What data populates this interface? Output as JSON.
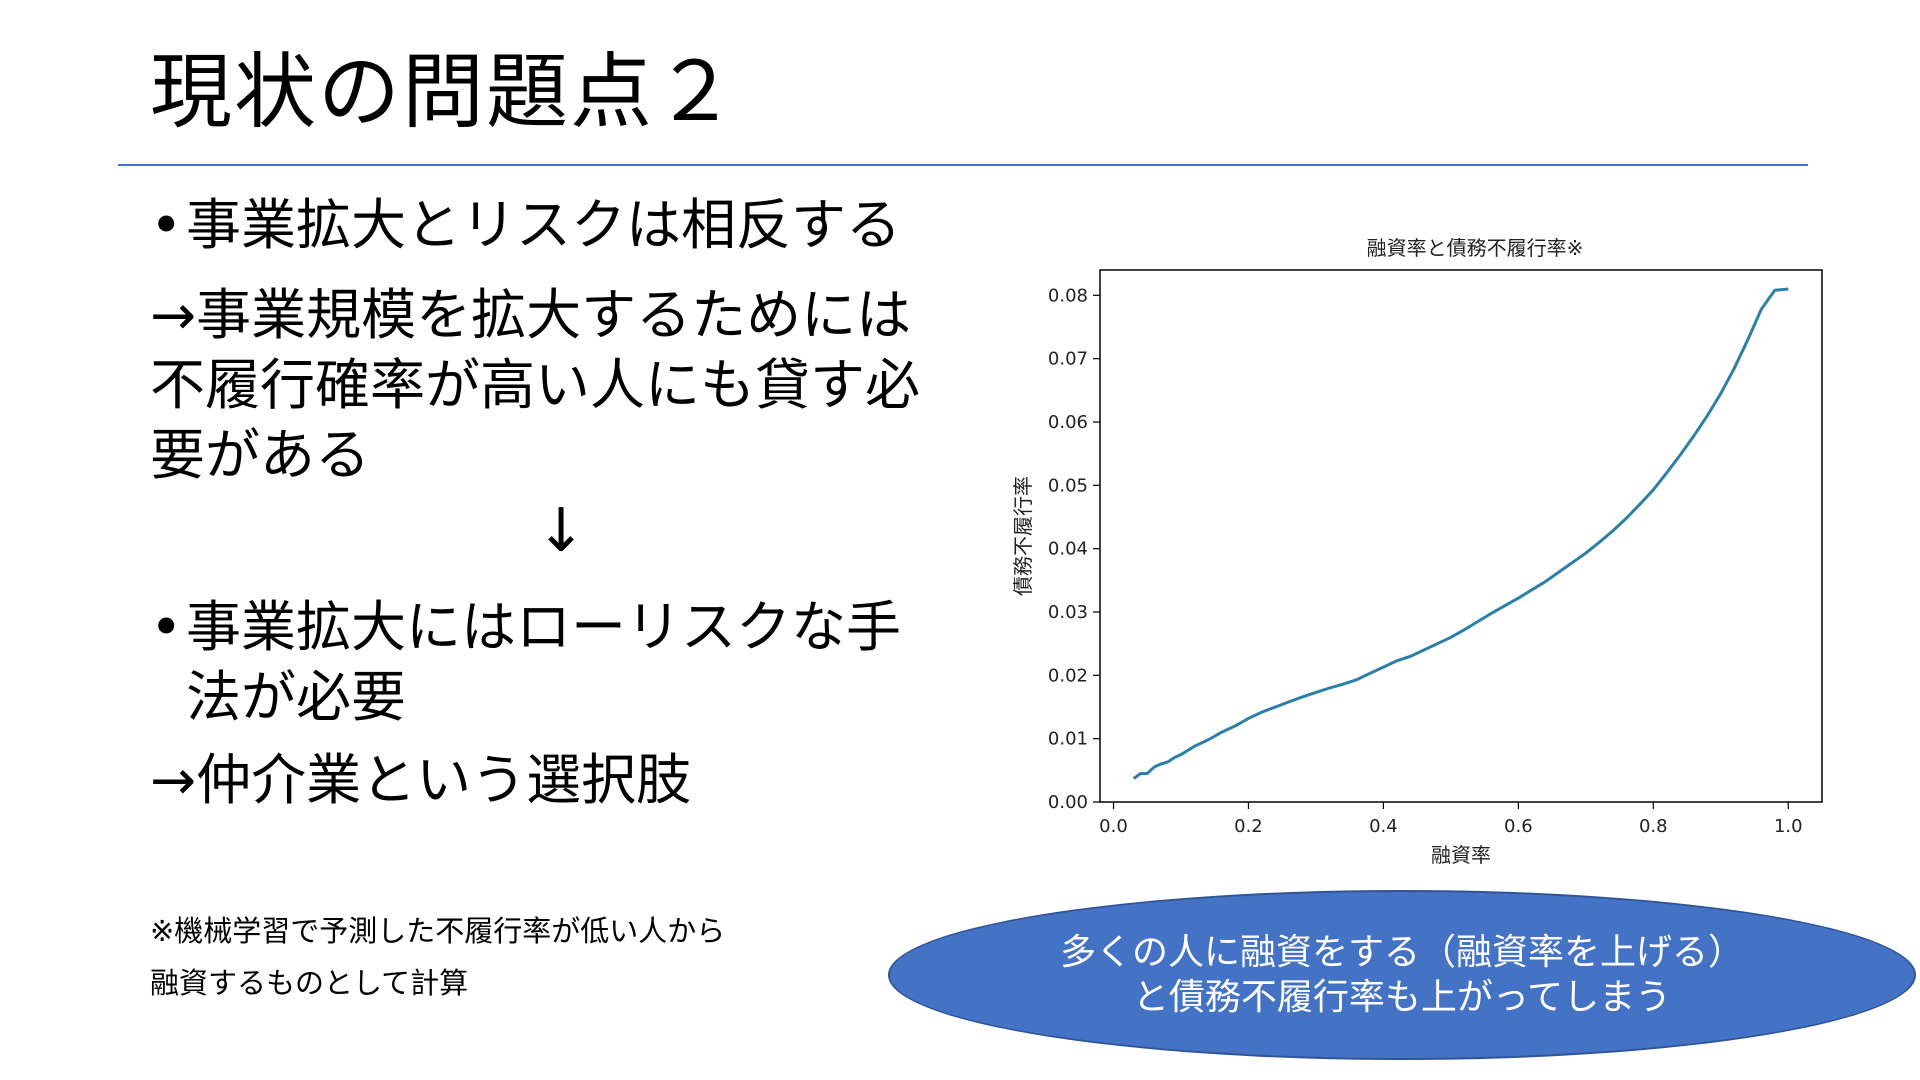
{
  "slide": {
    "title": "現状の問題点２",
    "bullets": [
      {
        "lines": [
          "事業拡大とリスクは相反する"
        ]
      },
      {
        "lines": [
          "事業拡大にはローリスクな手",
          "法が必要"
        ]
      }
    ],
    "bullet_symbol": "•",
    "para1": [
      "→事業規模を拡大するためには",
      "不履行確率が高い人にも貸す必",
      "要がある"
    ],
    "down_arrow": "↓",
    "para2": "→仲介業という選択肢",
    "footnote": [
      "※機械学習で予測した不履行率が低い人から",
      "融資するものとして計算"
    ],
    "callout": [
      "多くの人に融資をする（融資率を上げる）",
      "と債務不履行率も上がってしまう"
    ],
    "colors": {
      "accent": "#4472c4",
      "line": "#2e7fa8"
    }
  },
  "chart_data": {
    "type": "line",
    "title": "融資率と債務不履行率※",
    "xlabel": "融資率",
    "ylabel": "債務不履行率",
    "xlim": [
      -0.02,
      1.05
    ],
    "ylim": [
      0.0,
      0.084
    ],
    "xticks": [
      "0.0",
      "0.2",
      "0.4",
      "0.6",
      "0.8",
      "1.0"
    ],
    "yticks": [
      "0.00",
      "0.01",
      "0.02",
      "0.03",
      "0.04",
      "0.05",
      "0.06",
      "0.07",
      "0.08"
    ],
    "grid": false,
    "series": [
      {
        "x": [
          0.03,
          0.04,
          0.05,
          0.06,
          0.07,
          0.08,
          0.09,
          0.1,
          0.12,
          0.14,
          0.16,
          0.18,
          0.2,
          0.22,
          0.24,
          0.26,
          0.28,
          0.3,
          0.32,
          0.34,
          0.36,
          0.38,
          0.4,
          0.42,
          0.44,
          0.46,
          0.48,
          0.5,
          0.52,
          0.54,
          0.56,
          0.58,
          0.6,
          0.62,
          0.64,
          0.66,
          0.68,
          0.7,
          0.72,
          0.74,
          0.76,
          0.78,
          0.8,
          0.82,
          0.84,
          0.86,
          0.88,
          0.9,
          0.92,
          0.94,
          0.96,
          0.98,
          1.0
        ],
        "y": [
          0.0037,
          0.0045,
          0.0045,
          0.0055,
          0.006,
          0.0063,
          0.007,
          0.0075,
          0.0088,
          0.0098,
          0.011,
          0.012,
          0.0132,
          0.0142,
          0.015,
          0.0158,
          0.0166,
          0.0173,
          0.018,
          0.0186,
          0.0193,
          0.0203,
          0.0213,
          0.0223,
          0.023,
          0.024,
          0.025,
          0.026,
          0.0272,
          0.0285,
          0.0298,
          0.031,
          0.0322,
          0.0335,
          0.0348,
          0.0363,
          0.0378,
          0.0393,
          0.041,
          0.0428,
          0.0448,
          0.047,
          0.0493,
          0.052,
          0.0548,
          0.0578,
          0.061,
          0.0645,
          0.0685,
          0.073,
          0.0778,
          0.0808,
          0.081
        ]
      }
    ]
  }
}
